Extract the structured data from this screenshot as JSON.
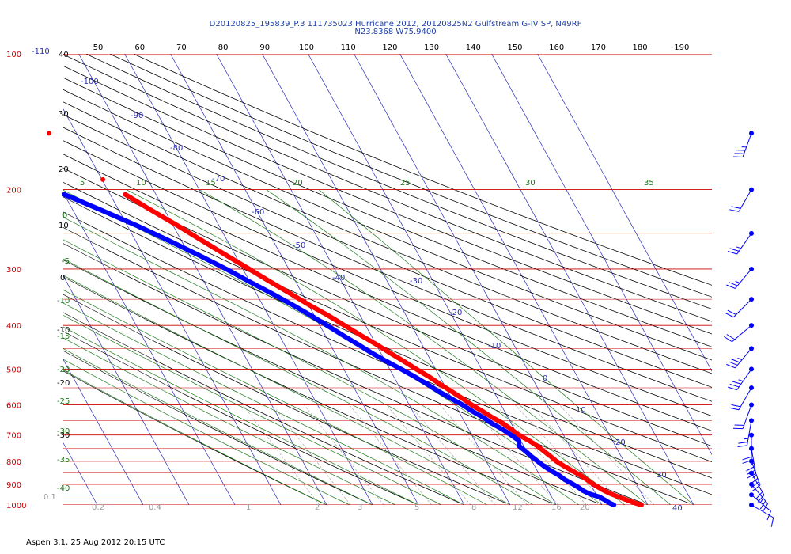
{
  "header": {
    "title_line1": "D20120825_195839_P.3 111735023 Hurricane 2012, 20120825N2 Gulfstream G-IV SP, N49RF",
    "title_line2": "N23.8368 W75.9400"
  },
  "footer": {
    "text": "Aspen 3.1, 25 Aug 2012  20:15 UTC"
  },
  "colors": {
    "temperature": "#ff0000",
    "dewpoint": "#0000ff",
    "isobar": "#cc0000",
    "isotherm": "#2a2ab8",
    "dry_adiabat": "#000000",
    "moist_adiabat": "#1e7a1e",
    "mixing_ratio": "#9a9a9a",
    "wind": "#0000ff"
  },
  "chart_data": {
    "type": "skew-t",
    "x_axis": {
      "top_tick_labels": [
        "50",
        "60",
        "70",
        "80",
        "90",
        "100",
        "110",
        "120",
        "130",
        "140",
        "150",
        "160",
        "170",
        "180",
        "190"
      ],
      "range": [
        45,
        195
      ]
    },
    "pressure_axis": {
      "tick_labels": [
        "100",
        "200",
        "300",
        "400",
        "500",
        "600",
        "700",
        "800",
        "900",
        "1000"
      ],
      "range_hpa": [
        100,
        1000
      ],
      "scale": "log"
    },
    "isotherm_labels": [
      "-110",
      "-100",
      "-90",
      "-80",
      "-70",
      "-60",
      "-50",
      "-40",
      "-30",
      "-20",
      "-10",
      "0",
      "10",
      "20",
      "30",
      "40"
    ],
    "dry_adiabat_labels": [
      "40",
      "30",
      "20",
      "10",
      "0",
      "-10",
      "-20",
      "-30"
    ],
    "moist_adiabat_labels": [
      "5",
      "0",
      "-5",
      "-10",
      "-15",
      "-20",
      "-25",
      "-30",
      "-35",
      "-40",
      "10",
      "15",
      "20",
      "25",
      "30",
      "35"
    ],
    "mixing_ratio_labels": [
      "0.1",
      "0.2",
      "0.4",
      "1",
      "2",
      "3",
      "5",
      "8",
      "12",
      "16",
      "20"
    ],
    "series": [
      {
        "name": "Temperature",
        "points": [
          [
            1000,
            28.6
          ],
          [
            990,
            27.4
          ],
          [
            975,
            26.0
          ],
          [
            960,
            24.6
          ],
          [
            945,
            23.3
          ],
          [
            930,
            22.2
          ],
          [
            915,
            21.4
          ],
          [
            900,
            20.6
          ],
          [
            880,
            19.8
          ],
          [
            860,
            18.9
          ],
          [
            840,
            17.6
          ],
          [
            820,
            16.4
          ],
          [
            800,
            15.3
          ],
          [
            780,
            14.6
          ],
          [
            760,
            13.8
          ],
          [
            740,
            13.0
          ],
          [
            720,
            11.8
          ],
          [
            700,
            10.3
          ],
          [
            680,
            9.3
          ],
          [
            660,
            8.2
          ],
          [
            640,
            6.6
          ],
          [
            620,
            5.2
          ],
          [
            600,
            3.6
          ],
          [
            580,
            2.3
          ],
          [
            560,
            0.8
          ],
          [
            540,
            -0.8
          ],
          [
            520,
            -2.3
          ],
          [
            500,
            -4.2
          ],
          [
            480,
            -6.0
          ],
          [
            460,
            -8.0
          ],
          [
            440,
            -10.0
          ],
          [
            420,
            -12.3
          ],
          [
            400,
            -14.6
          ],
          [
            380,
            -17.0
          ],
          [
            360,
            -19.9
          ],
          [
            340,
            -22.6
          ],
          [
            320,
            -25.6
          ],
          [
            300,
            -28.6
          ],
          [
            280,
            -31.9
          ],
          [
            260,
            -35.4
          ],
          [
            240,
            -39.1
          ],
          [
            220,
            -43.4
          ],
          [
            205,
            -46.7
          ],
          [
            190,
            -49.8
          ],
          [
            150,
            -56.0
          ]
        ]
      },
      {
        "name": "Dewpoint",
        "points": [
          [
            1000,
            22.6
          ],
          [
            990,
            21.9
          ],
          [
            975,
            21.2
          ],
          [
            960,
            20.4
          ],
          [
            945,
            18.6
          ],
          [
            930,
            17.6
          ],
          [
            915,
            17.0
          ],
          [
            900,
            16.2
          ],
          [
            880,
            15.0
          ],
          [
            860,
            14.2
          ],
          [
            840,
            13.0
          ],
          [
            820,
            12.0
          ],
          [
            800,
            11.2
          ],
          [
            780,
            10.4
          ],
          [
            760,
            9.8
          ],
          [
            740,
            9.0
          ],
          [
            720,
            9.6
          ],
          [
            700,
            8.6
          ],
          [
            680,
            7.4
          ],
          [
            660,
            5.8
          ],
          [
            640,
            4.6
          ],
          [
            620,
            3.0
          ],
          [
            600,
            1.6
          ],
          [
            580,
            -0.2
          ],
          [
            560,
            -2.0
          ],
          [
            540,
            -3.6
          ],
          [
            520,
            -5.4
          ],
          [
            500,
            -7.5
          ],
          [
            480,
            -9.8
          ],
          [
            460,
            -12.0
          ],
          [
            440,
            -14.0
          ],
          [
            420,
            -16.2
          ],
          [
            400,
            -18.4
          ],
          [
            380,
            -20.8
          ],
          [
            360,
            -23.5
          ],
          [
            340,
            -26.6
          ],
          [
            320,
            -30.1
          ],
          [
            300,
            -33.6
          ],
          [
            280,
            -37.8
          ],
          [
            260,
            -42.6
          ],
          [
            240,
            -48.0
          ],
          [
            220,
            -54.5
          ],
          [
            205,
            -60.0
          ]
        ]
      }
    ],
    "wind_barbs": [
      {
        "p": 150,
        "dir": 200,
        "spd": 25
      },
      {
        "p": 200,
        "dir": 210,
        "spd": 20
      },
      {
        "p": 250,
        "dir": 215,
        "spd": 15
      },
      {
        "p": 300,
        "dir": 220,
        "spd": 15
      },
      {
        "p": 350,
        "dir": 225,
        "spd": 20
      },
      {
        "p": 400,
        "dir": 230,
        "spd": 20
      },
      {
        "p": 450,
        "dir": 220,
        "spd": 25
      },
      {
        "p": 500,
        "dir": 215,
        "spd": 25
      },
      {
        "p": 550,
        "dir": 210,
        "spd": 20
      },
      {
        "p": 600,
        "dir": 200,
        "spd": 20
      },
      {
        "p": 650,
        "dir": 190,
        "spd": 15
      },
      {
        "p": 700,
        "dir": 180,
        "spd": 20
      },
      {
        "p": 750,
        "dir": 170,
        "spd": 25
      },
      {
        "p": 800,
        "dir": 160,
        "spd": 25
      },
      {
        "p": 850,
        "dir": 150,
        "spd": 20
      },
      {
        "p": 900,
        "dir": 140,
        "spd": 15
      },
      {
        "p": 950,
        "dir": 130,
        "spd": 10
      },
      {
        "p": 1000,
        "dir": 120,
        "spd": 10
      }
    ]
  }
}
